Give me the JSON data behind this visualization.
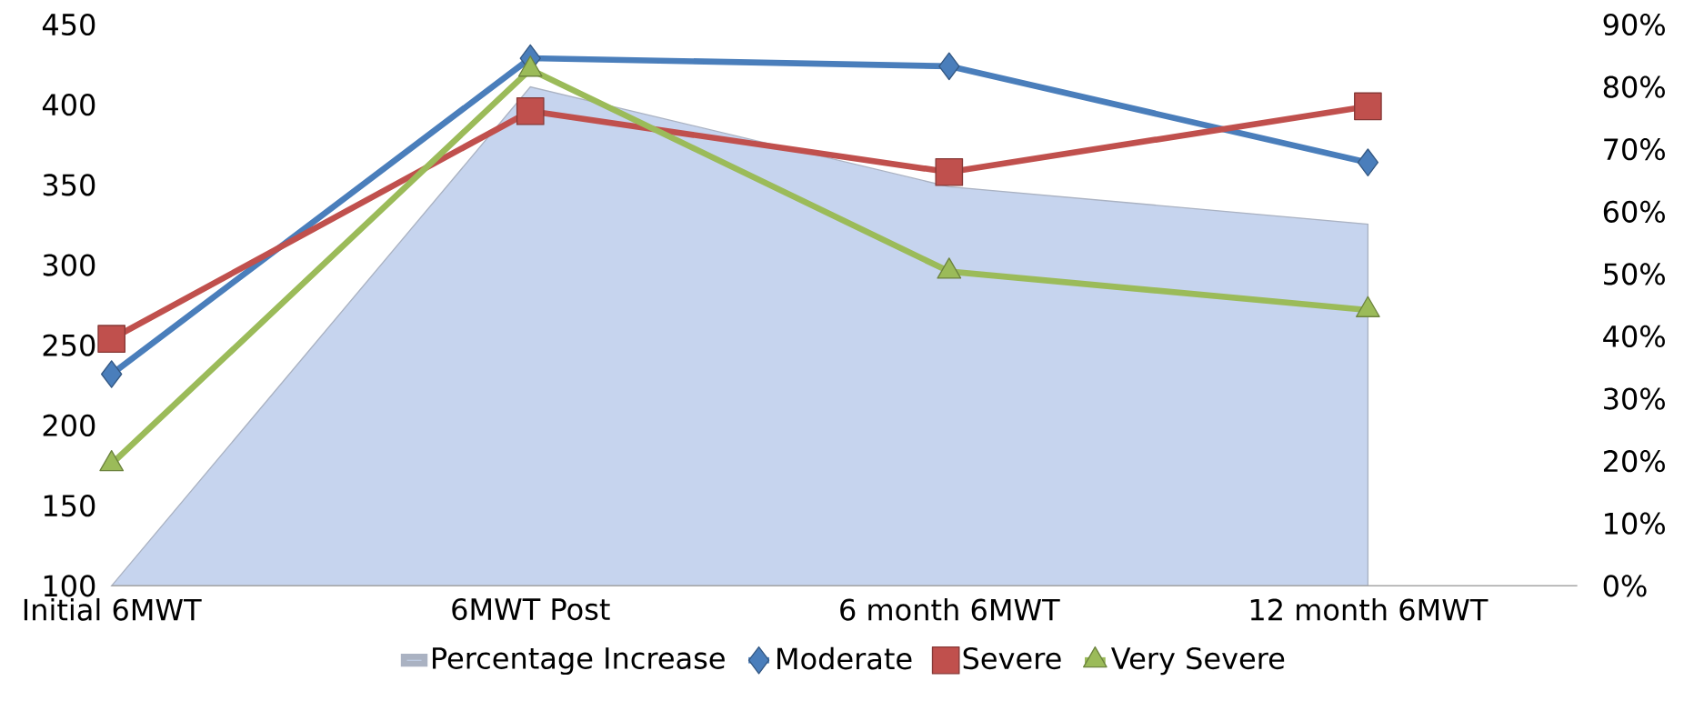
{
  "chart_data": {
    "type": "line",
    "categories": [
      "Initial 6MWT",
      "6MWT Post",
      "6 month 6MWT",
      "12 month 6MWT"
    ],
    "series": [
      {
        "name": "Percentage Increase",
        "type": "area",
        "axis": "y2",
        "color": "#c6d4ee",
        "values": [
          0,
          80,
          64,
          58
        ]
      },
      {
        "name": "Moderate",
        "color": "#4a7ebb",
        "marker": "diamond",
        "values": [
          232,
          429,
          424,
          364
        ]
      },
      {
        "name": "Severe",
        "color": "#c0504d",
        "marker": "square",
        "values": [
          254,
          396,
          358,
          399
        ]
      },
      {
        "name": "Very Severe",
        "color": "#9bbb59",
        "marker": "triangle",
        "values": [
          176,
          422,
          296,
          272
        ]
      }
    ],
    "ylim": [
      100,
      450
    ],
    "yticks": [
      100,
      150,
      200,
      250,
      300,
      350,
      400,
      450
    ],
    "y2lim": [
      0,
      90
    ],
    "y2ticks": [
      {
        "value": 0,
        "label": "0%"
      },
      {
        "value": 10,
        "label": "10%"
      },
      {
        "value": 20,
        "label": "20%"
      },
      {
        "value": 30,
        "label": "30%"
      },
      {
        "value": 40,
        "label": "40%"
      },
      {
        "value": 50,
        "label": "50%"
      },
      {
        "value": 60,
        "label": "60%"
      },
      {
        "value": 70,
        "label": "70%"
      },
      {
        "value": 80,
        "label": "80%"
      },
      {
        "value": 90,
        "label": "90%"
      }
    ],
    "legend": "bottom"
  }
}
